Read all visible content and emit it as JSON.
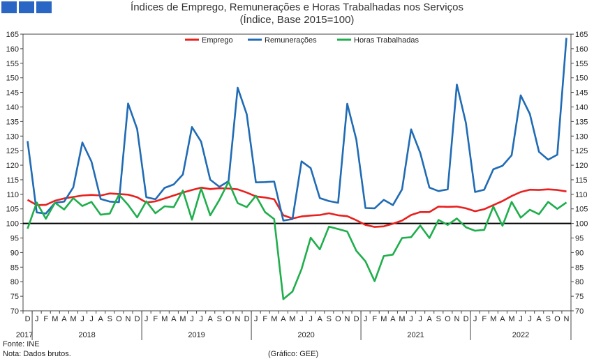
{
  "header": {
    "logo_icon": "geee-logo-squares",
    "title_line1": "Índices de Emprego, Remunerações e Horas Trabalhadas nos Serviços",
    "title_line2": "(Índice, Base 2015=100)"
  },
  "footer": {
    "source": "Fonte: INE",
    "note": "Nota: Dados brutos.",
    "credit": "(Gráfico: GEE)"
  },
  "chart_data": {
    "type": "line",
    "ylim": [
      70,
      165
    ],
    "yticks": [
      70,
      75,
      80,
      85,
      90,
      95,
      100,
      105,
      110,
      115,
      120,
      125,
      130,
      135,
      140,
      145,
      150,
      155,
      160,
      165
    ],
    "reference_line": 100,
    "legend_position": "top-center",
    "month_labels": [
      "D",
      "J",
      "F",
      "M",
      "A",
      "M",
      "J",
      "J",
      "A",
      "S",
      "O",
      "N",
      "D",
      "J",
      "F",
      "M",
      "A",
      "M",
      "J",
      "J",
      "A",
      "S",
      "O",
      "N",
      "D",
      "J",
      "F",
      "M",
      "A",
      "M",
      "J",
      "J",
      "A",
      "S",
      "O",
      "N",
      "D",
      "J",
      "F",
      "M",
      "A",
      "M",
      "J",
      "J",
      "A",
      "S",
      "O",
      "N",
      "D",
      "J",
      "F",
      "M",
      "A",
      "M",
      "J",
      "J",
      "A",
      "S",
      "O",
      "N"
    ],
    "year_labels": [
      {
        "label": "2017",
        "start": 0,
        "end": 0
      },
      {
        "label": "2018",
        "start": 1,
        "end": 12
      },
      {
        "label": "2019",
        "start": 13,
        "end": 24
      },
      {
        "label": "2020",
        "start": 25,
        "end": 36
      },
      {
        "label": "2021",
        "start": 37,
        "end": 48
      },
      {
        "label": "2022",
        "start": 49,
        "end": 59
      }
    ],
    "series": [
      {
        "name": "Emprego",
        "color": "#e8201e",
        "values": [
          108.1,
          106.3,
          106.4,
          107.8,
          108.6,
          109.1,
          109.6,
          109.8,
          109.6,
          110.3,
          110.1,
          109.9,
          109.0,
          107.2,
          107.6,
          108.6,
          109.6,
          110.6,
          111.5,
          112.3,
          111.8,
          112.1,
          112.0,
          111.7,
          110.6,
          109.3,
          108.9,
          108.3,
          102.8,
          101.7,
          102.4,
          102.7,
          102.9,
          103.5,
          102.8,
          102.5,
          101.1,
          99.5,
          98.8,
          99.0,
          99.9,
          101.0,
          102.9,
          103.9,
          103.9,
          105.8,
          105.7,
          105.8,
          105.2,
          104.2,
          104.9,
          106.3,
          107.7,
          109.4,
          110.8,
          111.6,
          111.5,
          111.7,
          111.5,
          111.0
        ]
      },
      {
        "name": "Remunerações",
        "color": "#1f6bb5",
        "values": [
          128.3,
          103.8,
          103.4,
          107.1,
          107.5,
          112.4,
          127.8,
          121.2,
          108.4,
          107.5,
          107.3,
          141.2,
          132.4,
          109.0,
          108.3,
          112.2,
          113.4,
          116.8,
          133.1,
          128.1,
          115.0,
          112.6,
          114.5,
          146.6,
          137.5,
          114.1,
          114.2,
          114.4,
          101.0,
          101.5,
          121.3,
          119.0,
          108.7,
          107.7,
          107.1,
          141.1,
          128.8,
          105.3,
          105.2,
          108.1,
          106.3,
          111.7,
          132.3,
          124.2,
          112.3,
          111.1,
          111.7,
          147.7,
          134.5,
          110.8,
          111.6,
          118.6,
          119.8,
          123.4,
          144.0,
          137.6,
          124.6,
          121.9,
          123.6,
          163.7
        ]
      },
      {
        "name": "Horas Trabalhadas",
        "color": "#1fae4c",
        "values": [
          98.2,
          107.2,
          101.6,
          107.1,
          104.8,
          108.7,
          106.0,
          107.4,
          103.0,
          103.4,
          109.9,
          106.4,
          102.1,
          107.6,
          103.5,
          105.9,
          105.6,
          111.3,
          101.3,
          112.0,
          102.8,
          108.1,
          114.3,
          107.0,
          105.6,
          109.5,
          103.9,
          101.5,
          74.0,
          76.6,
          84.3,
          95.1,
          91.1,
          98.9,
          98.1,
          97.2,
          90.6,
          87.0,
          80.2,
          88.8,
          89.3,
          95.0,
          95.3,
          99.3,
          95.0,
          101.2,
          99.5,
          101.7,
          98.7,
          97.5,
          97.8,
          105.8,
          99.2,
          107.4,
          102.0,
          104.7,
          103.2,
          107.4,
          105.0,
          107.2
        ]
      }
    ]
  }
}
